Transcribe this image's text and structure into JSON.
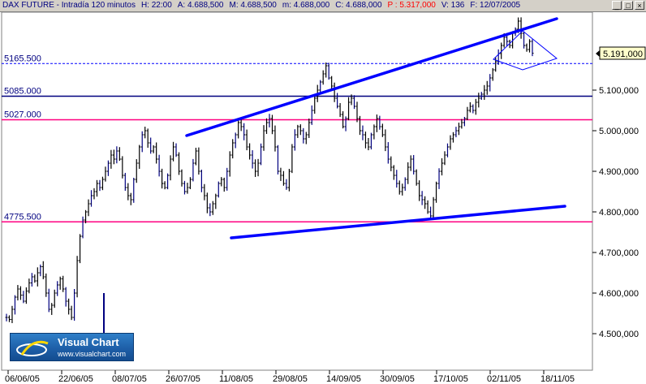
{
  "titlebar": {
    "instrument": "DAX FUTURE - Intradía 120 minutos",
    "high": "H: 22:00",
    "a": "A: 4.688,500",
    "m_up": "M: 4.688,500",
    "m_low": "m: 4.688,000",
    "c": "C: 4.688,000",
    "p": "P : 5.317,000",
    "v": "V: 136",
    "f": "F: 12/07/2005"
  },
  "window_buttons": [
    "_",
    "□",
    "×"
  ],
  "price_readout": "5.191,000",
  "logo": {
    "name": "Visual Chart",
    "url": "www.visualchart.com"
  },
  "colors": {
    "candle": "#000000",
    "trendline": "#0000ff",
    "support_level": "#ff0080",
    "resistance_level": "#000080",
    "price_badge": "#ffffcc"
  },
  "chart_data": {
    "type": "candlestick",
    "title": "DAX FUTURE - Intradía 120 minutos",
    "x_ticks": [
      "06/06/05",
      "22/06/05",
      "08/07/05",
      "26/07/05",
      "11/08/05",
      "29/08/05",
      "14/09/05",
      "30/09/05",
      "17/10/05",
      "02/11/05",
      "18/11/05"
    ],
    "y_ticks": [
      "4.500,000",
      "4.600,000",
      "4.700,000",
      "4.800,000",
      "4.900,000",
      "5.000,000",
      "5.100,000"
    ],
    "ylim": [
      4450,
      5300
    ],
    "horizontal_levels": [
      {
        "label": "5165.500",
        "value": 5165.5,
        "style": "dashed",
        "color": "#0000ff"
      },
      {
        "label": "5085.000",
        "value": 5085.0,
        "style": "solid",
        "color": "#000080"
      },
      {
        "label": "5027.000",
        "value": 5027.0,
        "style": "solid",
        "color": "#ff0080"
      },
      {
        "label": "4775.500",
        "value": 4775.5,
        "style": "solid",
        "color": "#ff0080"
      }
    ],
    "trendlines": [
      {
        "name": "upper channel",
        "from": {
          "x": "08/08/05",
          "y": 4990
        },
        "to": {
          "x": "30/11/05",
          "y": 5275
        }
      },
      {
        "name": "lower channel",
        "from": {
          "x": "17/08/05",
          "y": 4738
        },
        "to": {
          "x": "30/11/05",
          "y": 4812
        }
      }
    ],
    "series": [
      {
        "values": [
          4540,
          4535,
          4560,
          4590,
          4610,
          4595,
          4580,
          4605,
          4625,
          4640,
          4630,
          4650,
          4665,
          4640,
          4600,
          4560,
          4570,
          4600,
          4620,
          4635,
          4610,
          4580,
          4560,
          4540,
          4600,
          4680,
          4740,
          4780,
          4800,
          4820,
          4840,
          4850,
          4870,
          4860,
          4880,
          4900,
          4920,
          4940,
          4930,
          4950,
          4930,
          4890,
          4860,
          4840,
          4830,
          4880,
          4920,
          4960,
          4990,
          5000,
          4970,
          4950,
          4960,
          4930,
          4900,
          4870,
          4860,
          4890,
          4930,
          4960,
          4940,
          4900,
          4870,
          4850,
          4860,
          4880,
          4920,
          4950,
          4900,
          4860,
          4840,
          4810,
          4800,
          4820,
          4840,
          4870,
          4880,
          4860,
          4900,
          4940,
          4970,
          4990,
          5020,
          5010,
          4990,
          4960,
          4940,
          4920,
          4900,
          4920,
          4960,
          5000,
          5020,
          5030,
          5000,
          4960,
          4900,
          4890,
          4870,
          4860,
          4900,
          4960,
          4990,
          5010,
          5000,
          4980,
          4990,
          5020,
          5050,
          5080,
          5100,
          5120,
          5140,
          5160,
          5130,
          5110,
          5080,
          5060,
          5040,
          5010,
          5030,
          5070,
          5080,
          5060,
          5030,
          5000,
          4990,
          4970,
          4960,
          4990,
          5010,
          5030,
          5010,
          4990,
          4960,
          4930,
          4910,
          4890,
          4870,
          4850,
          4860,
          4880,
          4910,
          4930,
          4900,
          4870,
          4840,
          4830,
          4820,
          4800,
          4790,
          4830,
          4870,
          4900,
          4920,
          4940,
          4960,
          4980,
          4990,
          5000,
          5010,
          5020,
          5030,
          5050,
          5060,
          5050,
          5070,
          5080,
          5090,
          5100,
          5110,
          5130,
          5150,
          5170,
          5190,
          5210,
          5230,
          5220,
          5210,
          5240,
          5250,
          5270,
          5240,
          5210,
          5200,
          5220,
          5191
        ]
      }
    ]
  }
}
